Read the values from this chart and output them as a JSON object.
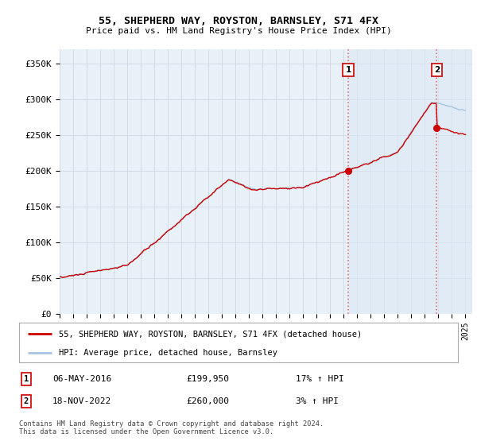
{
  "title": "55, SHEPHERD WAY, ROYSTON, BARNSLEY, S71 4FX",
  "subtitle": "Price paid vs. HM Land Registry's House Price Index (HPI)",
  "ylabel_ticks": [
    "£0",
    "£50K",
    "£100K",
    "£150K",
    "£200K",
    "£250K",
    "£300K",
    "£350K"
  ],
  "ylim": [
    0,
    370000
  ],
  "xlim_start": 1995.0,
  "xlim_end": 2025.5,
  "legend_line1": "55, SHEPHERD WAY, ROYSTON, BARNSLEY, S71 4FX (detached house)",
  "legend_line2": "HPI: Average price, detached house, Barnsley",
  "annotation1": {
    "label": "1",
    "date": "06-MAY-2016",
    "price": "£199,950",
    "info": "17% ↑ HPI"
  },
  "annotation2": {
    "label": "2",
    "date": "18-NOV-2022",
    "price": "£260,000",
    "info": "3% ↑ HPI"
  },
  "footnote": "Contains HM Land Registry data © Crown copyright and database right 2024.\nThis data is licensed under the Open Government Licence v3.0.",
  "hpi_color": "#a8c4e0",
  "price_color": "#cc0000",
  "vline_color": "#dd6666",
  "background_chart": "#e8f0f8",
  "background_fig": "#ffffff",
  "grid_color": "#d0d8e4",
  "hatch_fill": "#dce8f4"
}
